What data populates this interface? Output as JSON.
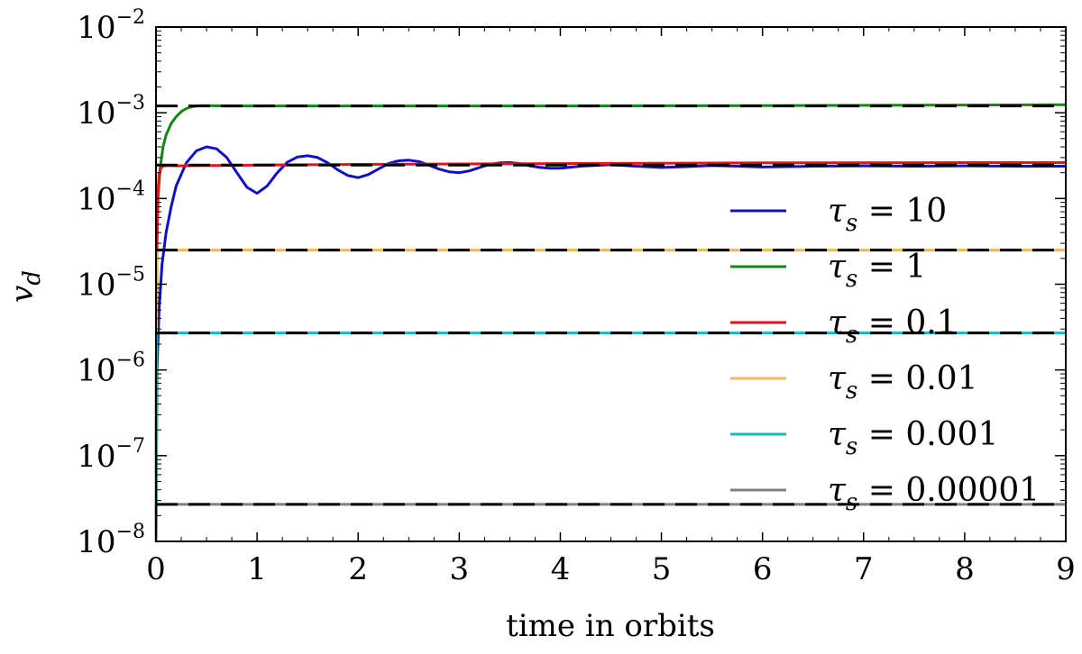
{
  "chart_data": {
    "type": "line",
    "xlabel": "time in orbits",
    "ylabel": "v",
    "ylabel_subscript": "d",
    "x_range": [
      0,
      9
    ],
    "y_range": [
      1e-08,
      0.01
    ],
    "y_scale": "log",
    "grid": false,
    "legend_position": "right",
    "x_ticks": [
      "0",
      "1",
      "2",
      "3",
      "4",
      "5",
      "6",
      "7",
      "8",
      "9"
    ],
    "y_ticks": [
      {
        "base": "10",
        "exp": "−2",
        "value": 0.01
      },
      {
        "base": "10",
        "exp": "−3",
        "value": 0.001
      },
      {
        "base": "10",
        "exp": "−4",
        "value": 0.0001
      },
      {
        "base": "10",
        "exp": "−5",
        "value": 1e-05
      },
      {
        "base": "10",
        "exp": "−6",
        "value": 1e-06
      },
      {
        "base": "10",
        "exp": "−7",
        "value": 1e-07
      },
      {
        "base": "10",
        "exp": "−8",
        "value": 1e-08
      }
    ],
    "reference_lines": [
      {
        "y": 0.0012,
        "color": "#000000",
        "style": "dashed"
      },
      {
        "y": 0.000245,
        "color": "#000000",
        "style": "dashed"
      },
      {
        "y": 2.5e-05,
        "color": "#000000",
        "style": "dashed"
      },
      {
        "y": 2.7e-06,
        "color": "#000000",
        "style": "dashed"
      },
      {
        "y": 2.7e-08,
        "color": "#000000",
        "style": "dashed"
      }
    ],
    "series": [
      {
        "name": "τs = 10",
        "color": "#1010cc",
        "x": [
          0.0,
          0.01,
          0.03,
          0.06,
          0.1,
          0.15,
          0.2,
          0.3,
          0.4,
          0.5,
          0.6,
          0.7,
          0.8,
          0.9,
          1.0,
          1.1,
          1.2,
          1.3,
          1.4,
          1.5,
          1.6,
          1.7,
          1.8,
          1.9,
          2.0,
          2.1,
          2.2,
          2.3,
          2.4,
          2.5,
          2.6,
          2.7,
          2.8,
          2.9,
          3.0,
          3.1,
          3.2,
          3.3,
          3.4,
          3.5,
          3.6,
          3.7,
          3.8,
          3.9,
          4.0,
          4.2,
          4.5,
          4.75,
          5.0,
          5.25,
          5.5,
          5.75,
          6.0,
          6.5,
          7.0,
          7.5,
          8.0,
          8.5,
          9.0
        ],
        "y": [
          1e-08,
          1e-06,
          5e-06,
          1.7e-05,
          4e-05,
          8e-05,
          0.00014,
          0.00026,
          0.00036,
          0.0004,
          0.00038,
          0.0003,
          0.0002,
          0.000135,
          0.000115,
          0.00014,
          0.0002,
          0.000265,
          0.000305,
          0.000315,
          0.0003,
          0.00026,
          0.000215,
          0.000185,
          0.000175,
          0.00019,
          0.00022,
          0.000255,
          0.000275,
          0.00028,
          0.00027,
          0.000245,
          0.00022,
          0.000205,
          0.0002,
          0.00021,
          0.00023,
          0.00025,
          0.00026,
          0.000262,
          0.000255,
          0.00024,
          0.00023,
          0.000225,
          0.000225,
          0.000238,
          0.000248,
          0.000238,
          0.00023,
          0.000235,
          0.000242,
          0.000238,
          0.000233,
          0.000238,
          0.00024,
          0.000238,
          0.00024,
          0.000238,
          0.000238
        ]
      },
      {
        "name": "τs = 1",
        "color": "#118811",
        "x": [
          0.0,
          0.01,
          0.02,
          0.04,
          0.07,
          0.1,
          0.15,
          0.2,
          0.25,
          0.3,
          0.35,
          0.4,
          0.45,
          0.5,
          0.7,
          1.0,
          2.0,
          4.0,
          6.0,
          8.0,
          9.0
        ],
        "y": [
          1e-08,
          3e-05,
          0.0001,
          0.00022,
          0.0004,
          0.00055,
          0.00075,
          0.0009,
          0.00103,
          0.00112,
          0.00117,
          0.0012,
          0.00121,
          0.00121,
          0.0012,
          0.0012,
          0.0012,
          0.0012,
          0.00121,
          0.00123,
          0.00124
        ]
      },
      {
        "name": "τs = 0.1",
        "color": "#ee1111",
        "x": [
          0.0,
          0.01,
          0.02,
          0.03,
          0.05,
          0.08,
          0.12,
          0.2,
          0.5,
          1.0,
          2.0,
          4.0,
          6.0,
          8.0,
          9.0
        ],
        "y": [
          1e-08,
          3e-05,
          0.00012,
          0.00019,
          0.00023,
          0.00024,
          0.000242,
          0.00024,
          0.000242,
          0.000245,
          0.00025,
          0.000255,
          0.00026,
          0.000262,
          0.000262
        ]
      },
      {
        "name": "τs = 0.01",
        "color": "#f4b85c",
        "x": [
          0.0,
          0.005,
          0.01,
          0.02,
          0.05,
          9.0
        ],
        "y": [
          1e-08,
          1e-05,
          2.3e-05,
          2.5e-05,
          2.5e-05,
          2.5e-05
        ]
      },
      {
        "name": "τs = 0.001",
        "color": "#11bbbb",
        "x": [
          0.0,
          0.002,
          0.005,
          0.01,
          9.0
        ],
        "y": [
          1e-08,
          1e-06,
          2.6e-06,
          2.7e-06,
          2.7e-06
        ]
      },
      {
        "name": "τs = 0.00001",
        "color": "#808080",
        "x": [
          0.0,
          0.002,
          0.005,
          9.0
        ],
        "y": [
          1e-08,
          2.6e-08,
          2.7e-08,
          2.7e-08
        ]
      }
    ],
    "legend": [
      {
        "symbol": "τ",
        "sub": "s",
        "text": " = 10"
      },
      {
        "symbol": "τ",
        "sub": "s",
        "text": " = 1"
      },
      {
        "symbol": "τ",
        "sub": "s",
        "text": " = 0.1"
      },
      {
        "symbol": "τ",
        "sub": "s",
        "text": " = 0.01"
      },
      {
        "symbol": "τ",
        "sub": "s",
        "text": " = 0.001"
      },
      {
        "symbol": "τ",
        "sub": "s",
        "text": " = 0.00001"
      }
    ]
  }
}
